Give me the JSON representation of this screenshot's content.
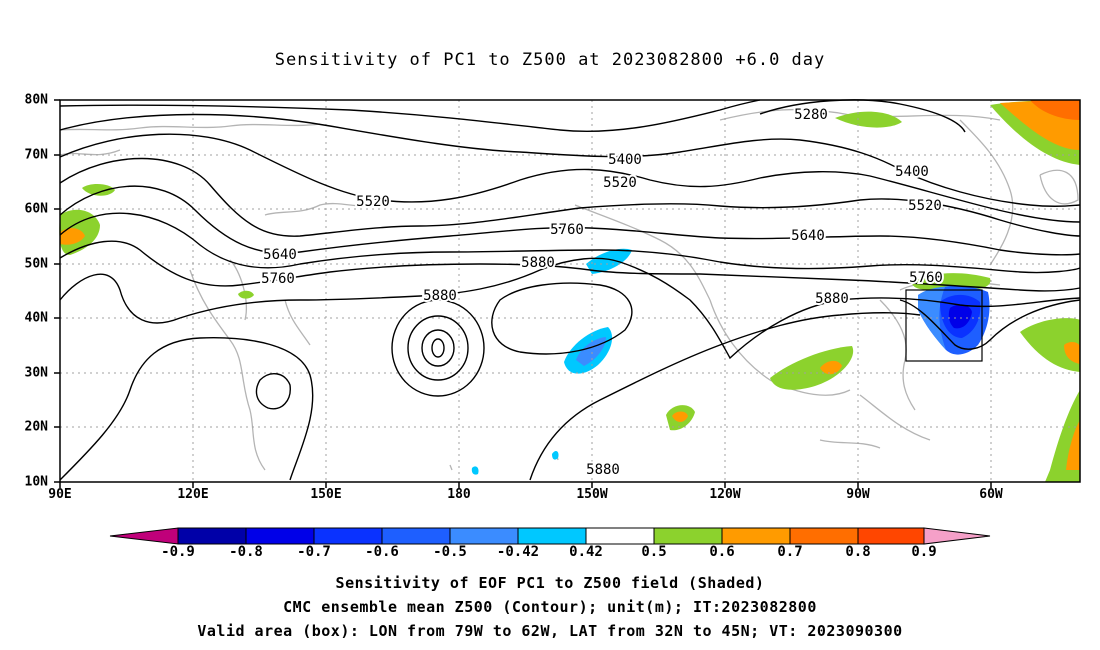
{
  "title": "Sensitivity of PC1 to Z500 at 2023082800 +6.0 day",
  "lat_labels": [
    "80N",
    "70N",
    "60N",
    "50N",
    "40N",
    "30N",
    "20N",
    "10N"
  ],
  "lon_labels": [
    "90E",
    "120E",
    "150E",
    "180",
    "150W",
    "120W",
    "90W",
    "60W"
  ],
  "contour_labels": [
    "5280",
    "5400",
    "5400",
    "5520",
    "5520",
    "5520",
    "5640",
    "5640",
    "5760",
    "5760",
    "5760",
    "5880",
    "5880",
    "5880",
    "5880"
  ],
  "colorbar": {
    "labels": [
      "-0.9",
      "-0.8",
      "-0.7",
      "-0.6",
      "-0.5",
      "-0.42",
      "0.42",
      "0.5",
      "0.6",
      "0.7",
      "0.8",
      "0.9"
    ],
    "colors": [
      "#c0007a",
      "#0000a8",
      "#0000e8",
      "#0a32ff",
      "#1e5fff",
      "#3b8cff",
      "#00c8ff",
      "#ffffff",
      "#8cd22d",
      "#ff9b00",
      "#ff6e00",
      "#ff4600",
      "#ff1400",
      "#f5a0c8"
    ]
  },
  "shade_colors": {
    "light_blue": "#00c8ff",
    "mid_blue": "#1e5fff",
    "dark_blue": "#0000e8",
    "green": "#8cd22d",
    "orange": "#ff9b00",
    "dark_orange": "#ff6e00"
  },
  "captions": [
    "Sensitivity of EOF PC1 to Z500 field (Shaded)",
    "CMC ensemble mean Z500 (Contour); unit(m); IT:2023082800",
    "Valid area (box): LON from 79W to 62W, LAT from 32N to 45N; VT: 2023090300"
  ]
}
